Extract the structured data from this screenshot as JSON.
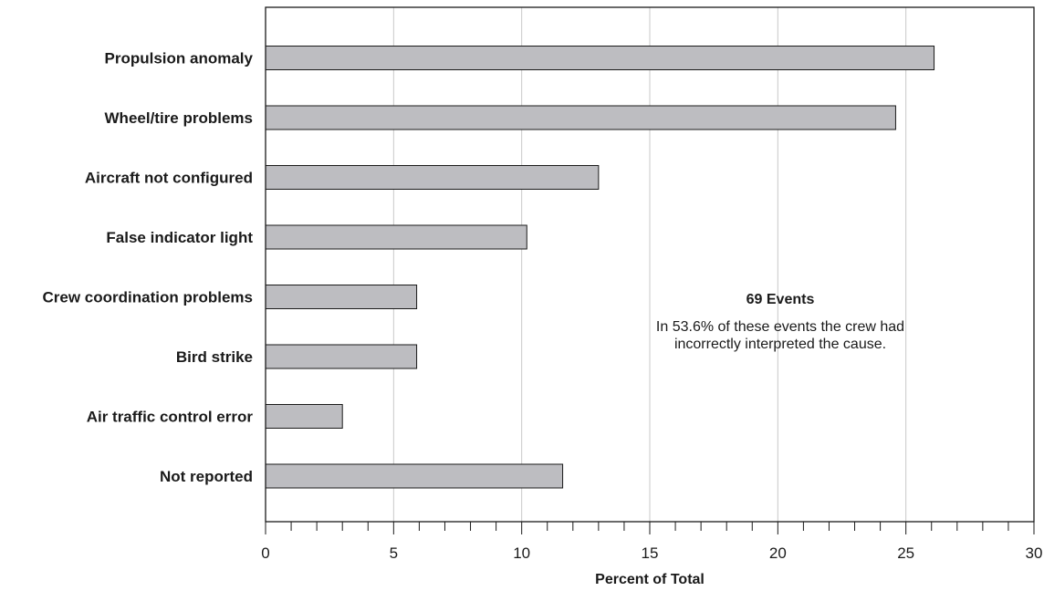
{
  "chart_data": {
    "type": "bar",
    "orientation": "horizontal",
    "categories": [
      "Propulsion anomaly",
      "Wheel/tire problems",
      "Aircraft not configured",
      "False  indicator light",
      "Crew coordination problems",
      "Bird strike",
      "Air traffic control error",
      "Not reported"
    ],
    "values": [
      26.1,
      24.6,
      13.0,
      10.2,
      5.9,
      5.9,
      3.0,
      11.6
    ],
    "xlabel": "Percent of Total",
    "ylabel": "",
    "xlim": [
      0,
      30
    ],
    "xticks": [
      0,
      5,
      10,
      15,
      20,
      25,
      30
    ],
    "minor_tick_step": 1,
    "grid": "vertical major gridlines",
    "annotation": {
      "title": "69 Events",
      "lines": [
        "In 53.6% of these events the crew had",
        "incorrectly interpreted the cause."
      ]
    },
    "colors": {
      "bar_fill": "#bdbdc1",
      "bar_stroke": "#1a1a1a",
      "grid": "#c8c8c8",
      "frame": "#1a1a1a"
    }
  }
}
